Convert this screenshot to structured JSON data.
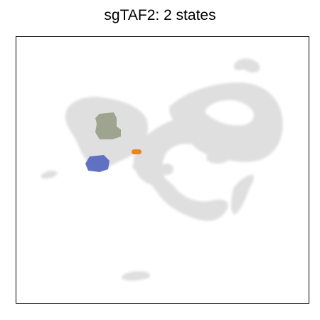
{
  "chart_data": {
    "type": "scatter",
    "title": "sgTAF2: 2 states",
    "xlabel": "",
    "ylabel": "",
    "grid": false,
    "legend": "none",
    "background_color": "#dcdcdc",
    "highlight_colors": [
      "#9aa08a",
      "#5a6abf",
      "#e8861f"
    ]
  }
}
